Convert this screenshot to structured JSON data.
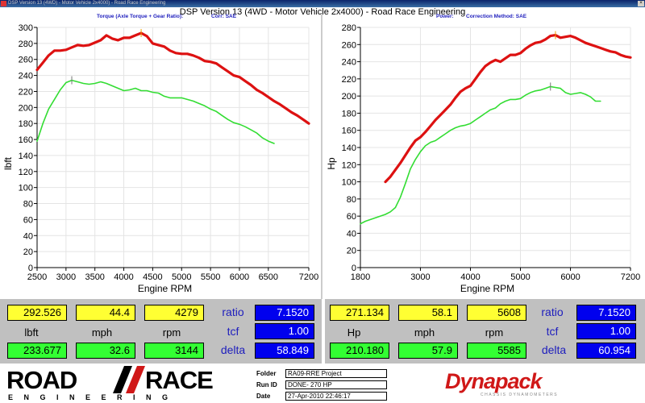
{
  "window": {
    "title": "DSP Version 13 (4WD) - Motor Vehicle 2x4000) - Road Race Engineering",
    "close_glyph": "×"
  },
  "header": {
    "title": "DSP Version 13 (4WD - Motor Vehicle 2x4000) - Road Race Engineering",
    "left_sub_1": "Torque (Axle Torque + Gear Ratio):",
    "left_sub_2": "Corr: SAE",
    "right_sub_1": "Power:",
    "right_sub_2": "Correction Method: SAE"
  },
  "chart_data": [
    {
      "type": "line",
      "ylabel": "lbft",
      "xlabel": "Engine RPM",
      "xlim": [
        2500,
        7200
      ],
      "ylim": [
        0,
        300
      ],
      "xticks": [
        2500,
        3000,
        3500,
        4000,
        4500,
        5000,
        5500,
        6000,
        6500,
        7200
      ],
      "yticks": [
        0,
        20,
        40,
        60,
        80,
        100,
        120,
        140,
        160,
        180,
        200,
        220,
        240,
        260,
        280,
        300
      ],
      "grid": true,
      "series": [
        {
          "color": "#dd1111",
          "x": [
            2500,
            2600,
            2700,
            2800,
            2900,
            3000,
            3100,
            3200,
            3300,
            3400,
            3500,
            3600,
            3700,
            3800,
            3900,
            4000,
            4100,
            4200,
            4300,
            4400,
            4500,
            4600,
            4700,
            4800,
            4900,
            5000,
            5100,
            5200,
            5300,
            5400,
            5500,
            5600,
            5700,
            5800,
            5900,
            6000,
            6100,
            6200,
            6300,
            6400,
            6500,
            6600,
            6700,
            6800,
            6900,
            7000,
            7100,
            7200
          ],
          "y": [
            247,
            256,
            265,
            271,
            271,
            272,
            275,
            278,
            277,
            278,
            281,
            284,
            290,
            286,
            284,
            287,
            287,
            290,
            293,
            289,
            280,
            278,
            276,
            271,
            268,
            267,
            267,
            265,
            262,
            258,
            257,
            255,
            250,
            245,
            240,
            238,
            233,
            228,
            222,
            218,
            213,
            208,
            204,
            199,
            194,
            190,
            185,
            180
          ]
        },
        {
          "color": "#33dd33",
          "x": [
            2500,
            2600,
            2700,
            2800,
            2900,
            3000,
            3100,
            3200,
            3300,
            3400,
            3500,
            3600,
            3700,
            3800,
            3900,
            4000,
            4100,
            4200,
            4300,
            4400,
            4500,
            4600,
            4700,
            4800,
            4900,
            5000,
            5100,
            5200,
            5300,
            5400,
            5500,
            5600,
            5700,
            5800,
            5900,
            6000,
            6100,
            6200,
            6300,
            6400,
            6500,
            6600
          ],
          "y": [
            158,
            180,
            198,
            210,
            222,
            231,
            234,
            232,
            230,
            229,
            230,
            232,
            230,
            227,
            224,
            221,
            222,
            224,
            221,
            221,
            219,
            218,
            214,
            212,
            212,
            212,
            210,
            208,
            205,
            202,
            198,
            195,
            190,
            185,
            181,
            179,
            176,
            172,
            168,
            162,
            158,
            155
          ]
        }
      ]
    },
    {
      "type": "line",
      "ylabel": "Hp",
      "xlabel": "Engine RPM",
      "xlim": [
        1800,
        7200
      ],
      "ylim": [
        0,
        280
      ],
      "xticks": [
        1800,
        3000,
        4000,
        5000,
        6000,
        7200
      ],
      "yticks": [
        0,
        20,
        40,
        60,
        80,
        100,
        120,
        140,
        160,
        180,
        200,
        220,
        240,
        260,
        280
      ],
      "grid": true,
      "series": [
        {
          "color": "#dd1111",
          "x": [
            2300,
            2400,
            2500,
            2600,
            2700,
            2800,
            2900,
            3000,
            3100,
            3200,
            3300,
            3400,
            3500,
            3600,
            3700,
            3800,
            3900,
            4000,
            4100,
            4200,
            4300,
            4400,
            4500,
            4600,
            4700,
            4800,
            4900,
            5000,
            5100,
            5200,
            5300,
            5400,
            5500,
            5600,
            5700,
            5800,
            5900,
            6000,
            6100,
            6200,
            6300,
            6400,
            6500,
            6600,
            6700,
            6800,
            6900,
            7000,
            7100,
            7200
          ],
          "y": [
            100,
            106,
            114,
            122,
            131,
            140,
            148,
            152,
            158,
            165,
            172,
            178,
            184,
            190,
            198,
            205,
            209,
            212,
            220,
            228,
            235,
            239,
            242,
            240,
            244,
            248,
            248,
            250,
            255,
            259,
            262,
            263,
            266,
            270,
            271,
            268,
            269,
            270,
            268,
            265,
            262,
            260,
            258,
            256,
            254,
            252,
            251,
            248,
            246,
            245
          ]
        },
        {
          "color": "#33dd33",
          "x": [
            1800,
            1900,
            2000,
            2100,
            2200,
            2300,
            2400,
            2500,
            2600,
            2700,
            2800,
            2900,
            3000,
            3100,
            3200,
            3300,
            3400,
            3500,
            3600,
            3700,
            3800,
            3900,
            4000,
            4100,
            4200,
            4300,
            4400,
            4500,
            4600,
            4700,
            4800,
            4900,
            5000,
            5100,
            5200,
            5300,
            5400,
            5500,
            5600,
            5700,
            5800,
            5900,
            6000,
            6100,
            6200,
            6300,
            6400,
            6500,
            6600
          ],
          "y": [
            51,
            54,
            56,
            58,
            60,
            62,
            65,
            70,
            82,
            98,
            115,
            126,
            135,
            142,
            146,
            148,
            152,
            156,
            160,
            163,
            165,
            166,
            168,
            172,
            176,
            180,
            184,
            186,
            191,
            194,
            196,
            196,
            197,
            201,
            204,
            206,
            207,
            209,
            211,
            210,
            209,
            204,
            202,
            203,
            204,
            202,
            199,
            194,
            194
          ]
        }
      ]
    }
  ],
  "readout_left": {
    "top": [
      "292.526",
      "44.4",
      "4279"
    ],
    "labels": [
      "lbft",
      "mph",
      "rpm"
    ],
    "bottom": [
      "233.677",
      "32.6",
      "3144"
    ],
    "ratio_label": "ratio",
    "ratio_value": "7.1520",
    "tcf_label": "tcf",
    "tcf_value": "1.00",
    "delta_label": "delta",
    "delta_value": "58.849"
  },
  "readout_right": {
    "top": [
      "271.134",
      "58.1",
      "5608"
    ],
    "labels": [
      "Hp",
      "mph",
      "rpm"
    ],
    "bottom": [
      "210.180",
      "57.9",
      "5585"
    ],
    "ratio_label": "ratio",
    "ratio_value": "7.1520",
    "tcf_label": "tcf",
    "tcf_value": "1.00",
    "delta_label": "delta",
    "delta_value": "60.954"
  },
  "footer": {
    "logo_road": "ROAD",
    "logo_race": "RACE",
    "logo_sub": "ENGINEERING",
    "folder_label": "Folder",
    "folder_value": "RA09-RRE Project",
    "runid_label": "Run ID",
    "runid_value": "DONE- 270 HP",
    "date_label": "Date",
    "date_value": "27-Apr-2010 22:46:17",
    "brand": "Dynapack",
    "brand_sub": "CHASSIS DYNAMOMETERS"
  }
}
